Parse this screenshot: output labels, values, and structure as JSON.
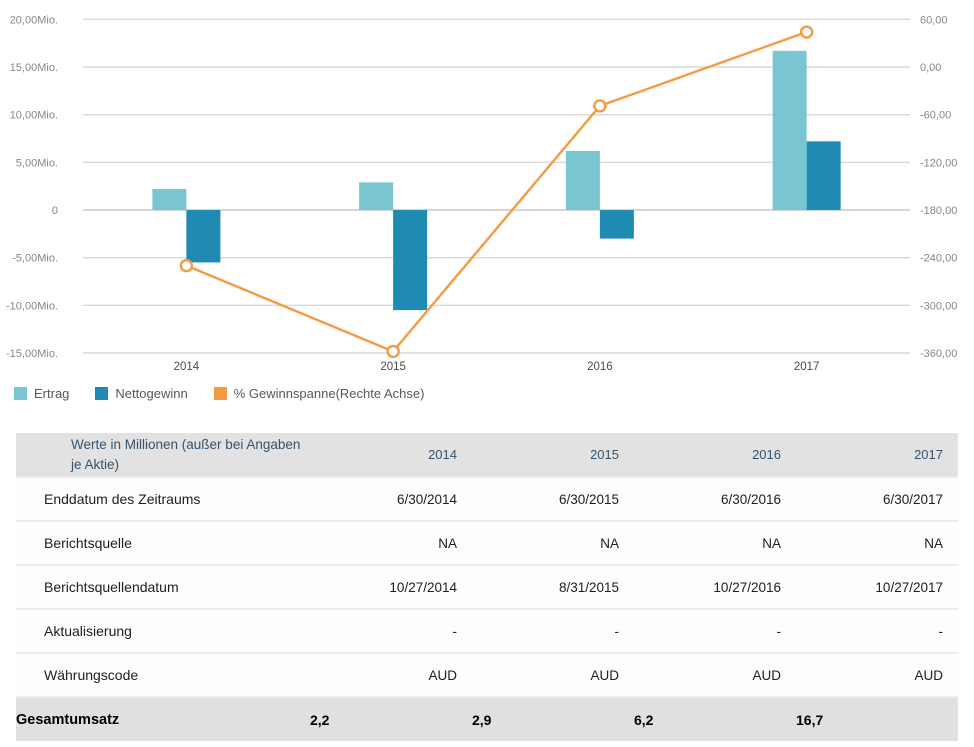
{
  "chart_data": {
    "type": "combo-bar-line",
    "categories": [
      "2014",
      "2015",
      "2016",
      "2017"
    ],
    "series": [
      {
        "name": "Ertrag",
        "type": "bar",
        "axis": "left",
        "color": "#79c6d2",
        "values": [
          2.2,
          2.9,
          6.2,
          16.7
        ]
      },
      {
        "name": "Nettogewinn",
        "type": "bar",
        "axis": "left",
        "color": "#1f8ab2",
        "values": [
          -5.5,
          -10.5,
          -3.0,
          7.2
        ]
      },
      {
        "name": "% Gewinnspanne(Rechte Achse)",
        "type": "line",
        "axis": "right",
        "color": "#f49b42",
        "values": [
          -250,
          -358,
          -49,
          44
        ]
      }
    ],
    "left_axis": {
      "tick_labels": [
        "20,00Mio.",
        "15,00Mio.",
        "10,00Mio.",
        "5,00Mio.",
        "0",
        "-5,00Mio.",
        "-10,00Mio.",
        "-15,00Mio."
      ],
      "tick_values": [
        20,
        15,
        10,
        5,
        0,
        -5,
        -10,
        -15
      ],
      "min": -15,
      "max": 20,
      "step": 5
    },
    "right_axis": {
      "tick_labels": [
        "60,00",
        "0,00",
        "-60,00",
        "-120,00",
        "-180,00",
        "-240,00",
        "-300,00",
        "-360,00"
      ],
      "tick_values": [
        60,
        0,
        -60,
        -120,
        -180,
        -240,
        -300,
        -360
      ],
      "min": -360,
      "max": 60,
      "step": 60
    },
    "grid": true,
    "legend_position": "bottom-left",
    "colors": {
      "grid": "#d6d9db",
      "zero_line": "#c5cacd",
      "axis_text": "#85878b",
      "x_label_text": "#4b4b4b"
    }
  },
  "table": {
    "header": {
      "label": "Werte in Millionen (außer bei Angaben je Aktie)",
      "columns": [
        "2014",
        "2015",
        "2016",
        "2017"
      ]
    },
    "rows": [
      {
        "label": "Enddatum des Zeitraums",
        "values": [
          "6/30/2014",
          "6/30/2015",
          "6/30/2016",
          "6/30/2017"
        ]
      },
      {
        "label": "Berichtsquelle",
        "values": [
          "NA",
          "NA",
          "NA",
          "NA"
        ]
      },
      {
        "label": "Berichtsquellendatum",
        "values": [
          "10/27/2014",
          "8/31/2015",
          "10/27/2016",
          "10/27/2017"
        ]
      },
      {
        "label": "Aktualisierung",
        "values": [
          "-",
          "-",
          "-",
          "-"
        ]
      },
      {
        "label": "Währungscode",
        "values": [
          "AUD",
          "AUD",
          "AUD",
          "AUD"
        ]
      }
    ],
    "total_row": {
      "label": "Gesamtumsatz",
      "values": [
        "2,2",
        "2,9",
        "6,2",
        "16,7"
      ]
    }
  }
}
